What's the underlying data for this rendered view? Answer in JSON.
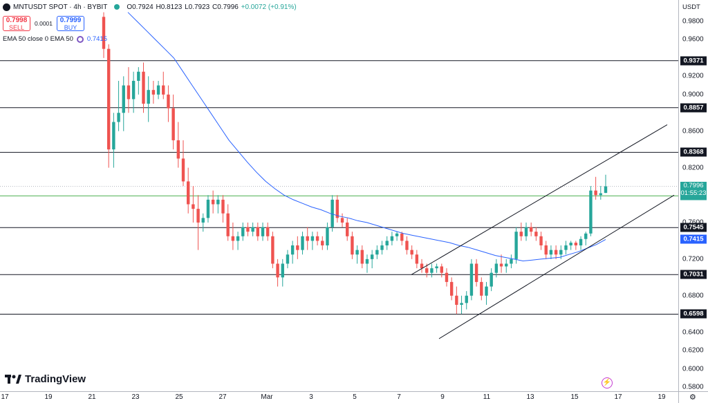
{
  "header": {
    "symbol": "MNTUSDT SPOT · 4h · BYBIT",
    "o": "O0.7924",
    "h": "H0.8123",
    "l": "L0.7923",
    "c": "C0.7996",
    "change": "+0.0072 (+0.91%)",
    "sell_price": "0.7998",
    "sell_label": "SELL",
    "spread": "0.0001",
    "buy_price": "0.7999",
    "buy_label": "BUY",
    "indicator": "EMA 50 close 0 EMA 50",
    "indicator_value": "0.7415"
  },
  "price_axis": {
    "currency": "USDT",
    "ticks": [
      "0.9800",
      "0.9600",
      "0.9200",
      "0.9000",
      "0.8600",
      "0.8200",
      "0.7600",
      "0.7200",
      "0.6800",
      "0.6400",
      "0.6200",
      "0.6000",
      "0.5800"
    ],
    "levels": [
      "0.9371",
      "0.8857",
      "0.8368",
      "0.7545",
      "0.7031",
      "0.6598"
    ],
    "last_price": "0.7996",
    "countdown": "01:55:23",
    "green_level": "0.7892",
    "ema_label": "0.7415"
  },
  "time_axis": [
    "17",
    "19",
    "21",
    "23",
    "25",
    "27",
    "Mar",
    "3",
    "5",
    "7",
    "9",
    "11",
    "13",
    "15",
    "17",
    "19"
  ],
  "brand": "TradingView",
  "colors": {
    "up": "#26a69a",
    "down": "#ef5350",
    "ema": "#2962ff",
    "level": "#131722"
  },
  "icons": [
    "mantle-logo-icon",
    "live-status-icon",
    "ema-settings-icon",
    "tradingview-logo-icon",
    "lightning-icon",
    "gear-icon"
  ],
  "chart_data": {
    "type": "candlestick",
    "ylim": [
      0.58,
      0.99
    ],
    "horizontal_levels": [
      0.9371,
      0.8857,
      0.8368,
      0.7545,
      0.7031,
      0.6598
    ],
    "green_line": 0.7892,
    "last_close": 0.7996,
    "candles": [
      [
        0.985,
        0.99,
        0.94,
        0.95
      ],
      [
        0.95,
        0.955,
        0.82,
        0.84
      ],
      [
        0.84,
        0.88,
        0.82,
        0.87
      ],
      [
        0.87,
        0.915,
        0.86,
        0.88
      ],
      [
        0.88,
        0.92,
        0.86,
        0.91
      ],
      [
        0.91,
        0.93,
        0.88,
        0.895
      ],
      [
        0.895,
        0.925,
        0.88,
        0.915
      ],
      [
        0.915,
        0.93,
        0.9,
        0.925
      ],
      [
        0.925,
        0.935,
        0.88,
        0.89
      ],
      [
        0.89,
        0.92,
        0.87,
        0.905
      ],
      [
        0.905,
        0.915,
        0.89,
        0.9
      ],
      [
        0.9,
        0.915,
        0.895,
        0.91
      ],
      [
        0.91,
        0.925,
        0.895,
        0.9
      ],
      [
        0.9,
        0.91,
        0.87,
        0.885
      ],
      [
        0.885,
        0.9,
        0.84,
        0.85
      ],
      [
        0.85,
        0.87,
        0.82,
        0.83
      ],
      [
        0.83,
        0.85,
        0.8,
        0.805
      ],
      [
        0.805,
        0.82,
        0.77,
        0.78
      ],
      [
        0.78,
        0.8,
        0.76,
        0.775
      ],
      [
        0.775,
        0.79,
        0.73,
        0.76
      ],
      [
        0.76,
        0.77,
        0.75,
        0.765
      ],
      [
        0.765,
        0.79,
        0.76,
        0.785
      ],
      [
        0.785,
        0.795,
        0.77,
        0.78
      ],
      [
        0.78,
        0.79,
        0.77,
        0.785
      ],
      [
        0.785,
        0.79,
        0.76,
        0.77
      ],
      [
        0.77,
        0.78,
        0.74,
        0.745
      ],
      [
        0.745,
        0.76,
        0.73,
        0.74
      ],
      [
        0.74,
        0.75,
        0.73,
        0.745
      ],
      [
        0.745,
        0.76,
        0.74,
        0.755
      ],
      [
        0.755,
        0.76,
        0.745,
        0.75
      ],
      [
        0.75,
        0.76,
        0.745,
        0.755
      ],
      [
        0.755,
        0.76,
        0.74,
        0.745
      ],
      [
        0.745,
        0.76,
        0.74,
        0.755
      ],
      [
        0.755,
        0.76,
        0.74,
        0.745
      ],
      [
        0.745,
        0.75,
        0.71,
        0.715
      ],
      [
        0.715,
        0.72,
        0.69,
        0.7
      ],
      [
        0.7,
        0.72,
        0.69,
        0.715
      ],
      [
        0.715,
        0.73,
        0.71,
        0.725
      ],
      [
        0.725,
        0.74,
        0.715,
        0.735
      ],
      [
        0.735,
        0.745,
        0.72,
        0.73
      ],
      [
        0.73,
        0.75,
        0.725,
        0.745
      ],
      [
        0.745,
        0.755,
        0.73,
        0.74
      ],
      [
        0.74,
        0.75,
        0.73,
        0.745
      ],
      [
        0.745,
        0.75,
        0.735,
        0.74
      ],
      [
        0.74,
        0.745,
        0.73,
        0.735
      ],
      [
        0.735,
        0.76,
        0.73,
        0.755
      ],
      [
        0.755,
        0.79,
        0.75,
        0.785
      ],
      [
        0.785,
        0.79,
        0.76,
        0.765
      ],
      [
        0.765,
        0.77,
        0.755,
        0.76
      ],
      [
        0.76,
        0.765,
        0.74,
        0.745
      ],
      [
        0.745,
        0.75,
        0.72,
        0.725
      ],
      [
        0.725,
        0.735,
        0.715,
        0.73
      ],
      [
        0.73,
        0.735,
        0.71,
        0.715
      ],
      [
        0.715,
        0.725,
        0.705,
        0.72
      ],
      [
        0.72,
        0.73,
        0.71,
        0.725
      ],
      [
        0.725,
        0.735,
        0.72,
        0.73
      ],
      [
        0.73,
        0.74,
        0.725,
        0.735
      ],
      [
        0.735,
        0.745,
        0.73,
        0.74
      ],
      [
        0.74,
        0.75,
        0.735,
        0.745
      ],
      [
        0.745,
        0.75,
        0.74,
        0.748
      ],
      [
        0.748,
        0.75,
        0.735,
        0.74
      ],
      [
        0.74,
        0.745,
        0.725,
        0.73
      ],
      [
        0.73,
        0.735,
        0.72,
        0.725
      ],
      [
        0.725,
        0.73,
        0.71,
        0.715
      ],
      [
        0.715,
        0.72,
        0.705,
        0.71
      ],
      [
        0.71,
        0.715,
        0.7,
        0.705
      ],
      [
        0.705,
        0.715,
        0.7,
        0.71
      ],
      [
        0.71,
        0.715,
        0.705,
        0.712
      ],
      [
        0.712,
        0.715,
        0.7,
        0.705
      ],
      [
        0.705,
        0.71,
        0.69,
        0.695
      ],
      [
        0.695,
        0.7,
        0.675,
        0.68
      ],
      [
        0.68,
        0.69,
        0.66,
        0.67
      ],
      [
        0.67,
        0.68,
        0.66,
        0.672
      ],
      [
        0.672,
        0.685,
        0.665,
        0.68
      ],
      [
        0.68,
        0.72,
        0.675,
        0.715
      ],
      [
        0.715,
        0.72,
        0.69,
        0.695
      ],
      [
        0.695,
        0.7,
        0.675,
        0.68
      ],
      [
        0.68,
        0.695,
        0.67,
        0.69
      ],
      [
        0.69,
        0.71,
        0.685,
        0.705
      ],
      [
        0.705,
        0.72,
        0.7,
        0.715
      ],
      [
        0.715,
        0.725,
        0.705,
        0.712
      ],
      [
        0.712,
        0.72,
        0.705,
        0.715
      ],
      [
        0.715,
        0.725,
        0.71,
        0.72
      ],
      [
        0.72,
        0.755,
        0.715,
        0.75
      ],
      [
        0.75,
        0.76,
        0.74,
        0.745
      ],
      [
        0.745,
        0.76,
        0.74,
        0.755
      ],
      [
        0.755,
        0.76,
        0.745,
        0.75
      ],
      [
        0.75,
        0.755,
        0.74,
        0.745
      ],
      [
        0.745,
        0.75,
        0.73,
        0.735
      ],
      [
        0.735,
        0.74,
        0.72,
        0.725
      ],
      [
        0.725,
        0.735,
        0.72,
        0.73
      ],
      [
        0.73,
        0.735,
        0.72,
        0.725
      ],
      [
        0.725,
        0.735,
        0.72,
        0.73
      ],
      [
        0.73,
        0.74,
        0.725,
        0.735
      ],
      [
        0.735,
        0.74,
        0.73,
        0.738
      ],
      [
        0.738,
        0.74,
        0.73,
        0.735
      ],
      [
        0.735,
        0.745,
        0.73,
        0.742
      ],
      [
        0.742,
        0.75,
        0.735,
        0.748
      ],
      [
        0.748,
        0.8,
        0.745,
        0.795
      ],
      [
        0.795,
        0.81,
        0.785,
        0.79
      ],
      [
        0.79,
        0.8,
        0.785,
        0.792
      ],
      [
        0.7924,
        0.8123,
        0.7923,
        0.7996
      ]
    ],
    "ema": [
      0.99,
      0.98,
      0.97,
      0.96,
      0.95,
      0.94,
      0.925,
      0.91,
      0.895,
      0.88,
      0.865,
      0.85,
      0.838,
      0.826,
      0.815,
      0.805,
      0.797,
      0.79,
      0.785,
      0.781,
      0.777,
      0.774,
      0.77,
      0.767,
      0.765,
      0.762,
      0.76,
      0.757,
      0.754,
      0.751,
      0.748,
      0.746,
      0.744,
      0.742,
      0.74,
      0.738,
      0.735,
      0.733,
      0.73,
      0.727,
      0.724,
      0.722,
      0.72,
      0.718,
      0.719,
      0.72,
      0.721,
      0.722,
      0.725,
      0.728,
      0.732,
      0.736,
      0.7415
    ],
    "channel": {
      "upper": [
        [
          0.595,
          0.703
        ],
        [
          0.965,
          0.867
        ]
      ],
      "lower": [
        [
          0.635,
          0.633
        ],
        [
          0.975,
          0.79
        ]
      ]
    }
  }
}
